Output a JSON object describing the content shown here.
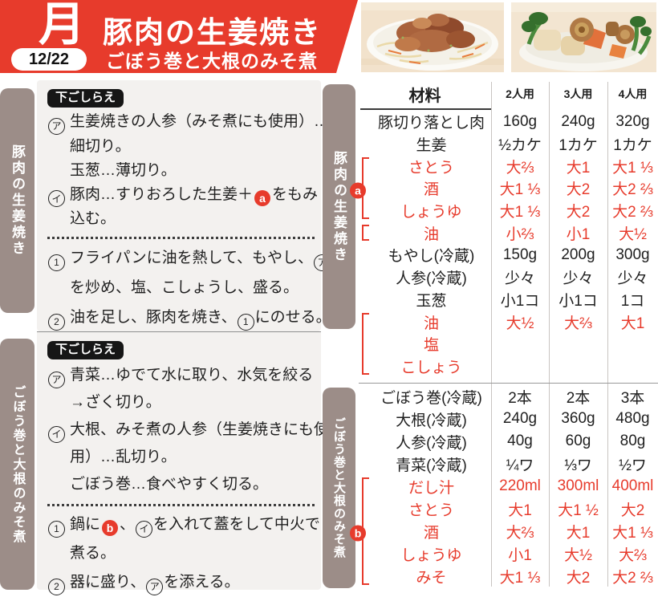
{
  "colors": {
    "accent_red": "#e73b2c",
    "tab_taupe": "#9c8d88",
    "block_bg": "#f3f1ef",
    "badge_black": "#161616",
    "ink": "#1f1f1f"
  },
  "header": {
    "day": "月",
    "date": "12/22",
    "title": "豚肉の生姜焼き",
    "subtitle": "ごぼう巻と大根のみそ煮"
  },
  "photos": [
    {
      "alt": "豚肉の生姜焼き"
    },
    {
      "alt": "ごぼう巻と大根のみそ煮"
    }
  ],
  "left_blocks": [
    {
      "tab": "豚肉の生姜焼き",
      "prep_label": "下ごしらえ",
      "prep_lines": [
        {
          "tokens": [
            [
              "kana",
              "ア"
            ],
            [
              "text",
              "生姜焼きの人参（みそ煮にも使用）…"
            ]
          ]
        },
        {
          "indent": true,
          "tokens": [
            [
              "text",
              "細切り。"
            ]
          ]
        },
        {
          "indent": true,
          "tokens": [
            [
              "text",
              "玉葱…薄切り。"
            ]
          ]
        },
        {
          "tokens": [
            [
              "kana",
              "イ"
            ],
            [
              "text",
              "豚肉…すりおろした生姜＋"
            ],
            [
              "badge",
              "a"
            ],
            [
              "text",
              "をもみ"
            ]
          ]
        },
        {
          "indent": true,
          "tokens": [
            [
              "text",
              "込む。"
            ]
          ]
        }
      ],
      "step_lines": [
        {
          "tokens": [
            [
              "num",
              "1"
            ],
            [
              "text",
              "フライパンに油を熱して、もやし、"
            ],
            [
              "kana",
              "ア"
            ]
          ]
        },
        {
          "indent": true,
          "tokens": [
            [
              "text",
              "を炒め、塩、こしょうし、盛る。"
            ]
          ]
        },
        {
          "tokens": [
            [
              "num",
              "2"
            ],
            [
              "text",
              "油を足し、豚肉を焼き、"
            ],
            [
              "num",
              "1"
            ],
            [
              "text",
              "にのせる。"
            ]
          ]
        }
      ]
    },
    {
      "tab": "ごぼう巻と大根のみそ煮",
      "prep_label": "下ごしらえ",
      "prep_lines": [
        {
          "tokens": [
            [
              "kana",
              "ア"
            ],
            [
              "text",
              "青菜…ゆでて水に取り、水気を絞る"
            ]
          ]
        },
        {
          "indent": true,
          "tokens": [
            [
              "text",
              "→ざく切り。"
            ]
          ]
        },
        {
          "tokens": [
            [
              "kana",
              "イ"
            ],
            [
              "text",
              "大根、みそ煮の人参（生姜焼きにも使"
            ]
          ]
        },
        {
          "indent": true,
          "tokens": [
            [
              "text",
              "用）…乱切り。"
            ]
          ]
        },
        {
          "indent": true,
          "tokens": [
            [
              "text",
              "ごぼう巻…食べやすく切る。"
            ]
          ]
        }
      ],
      "step_lines": [
        {
          "tokens": [
            [
              "num",
              "1"
            ],
            [
              "text",
              "鍋に"
            ],
            [
              "badge",
              "b"
            ],
            [
              "text",
              "、"
            ],
            [
              "kana",
              "イ"
            ],
            [
              "text",
              "を入れて蓋をして中火で"
            ]
          ]
        },
        {
          "indent": true,
          "tokens": [
            [
              "text",
              "煮る。"
            ]
          ]
        },
        {
          "tokens": [
            [
              "num",
              "2"
            ],
            [
              "text",
              "器に盛り、"
            ],
            [
              "kana",
              "ア"
            ],
            [
              "text",
              "を添える。"
            ]
          ]
        }
      ]
    }
  ],
  "table": {
    "headers": [
      "材料",
      "2人用",
      "3人用",
      "4人用"
    ],
    "sections": [
      {
        "tab": "豚肉の生姜焼き",
        "rows": [
          {
            "name": "豚切り落とし肉",
            "values": [
              "160g",
              "240g",
              "320g"
            ]
          },
          {
            "name": "生姜",
            "values": [
              "½カケ",
              "1カケ",
              "1カケ"
            ]
          },
          {
            "name": "さとう",
            "values": [
              "大⅔",
              "大1",
              "大1 ⅓"
            ],
            "red": true,
            "bracket": "start"
          },
          {
            "name": "酒",
            "values": [
              "大1 ⅓",
              "大2",
              "大2 ⅔"
            ],
            "red": true,
            "bracket": "mid",
            "badge": "a"
          },
          {
            "name": "しょうゆ",
            "values": [
              "大1 ⅓",
              "大2",
              "大2 ⅔"
            ],
            "red": true,
            "bracket": "end"
          },
          {
            "name": "油",
            "values": [
              "小⅔",
              "小1",
              "大½"
            ],
            "red": true,
            "bracket": "single"
          },
          {
            "name": "もやし(冷蔵)",
            "values": [
              "150g",
              "200g",
              "300g"
            ]
          },
          {
            "name": "人参(冷蔵)",
            "values": [
              "少々",
              "少々",
              "少々"
            ]
          },
          {
            "name": "玉葱",
            "values": [
              "小1コ",
              "小1コ",
              "1コ"
            ]
          },
          {
            "name": "油",
            "values": [
              "大½",
              "大⅔",
              "大1"
            ],
            "red": true,
            "bracket": "start"
          },
          {
            "name": "塩",
            "values": [
              "",
              "",
              ""
            ],
            "red": true,
            "bracket": "mid"
          },
          {
            "name": "こしょう",
            "values": [
              "",
              "",
              ""
            ],
            "red": true,
            "bracket": "end"
          }
        ]
      },
      {
        "tab": "ごぼう巻と大根のみそ煮",
        "rows": [
          {
            "name": "ごぼう巻(冷蔵)",
            "values": [
              "2本",
              "2本",
              "3本"
            ]
          },
          {
            "name": "大根(冷蔵)",
            "values": [
              "240g",
              "360g",
              "480g"
            ]
          },
          {
            "name": "人参(冷蔵)",
            "values": [
              "40g",
              "60g",
              "80g"
            ]
          },
          {
            "name": "青菜(冷蔵)",
            "values": [
              "¼ワ",
              "⅓ワ",
              "½ワ"
            ]
          },
          {
            "name": "だし汁",
            "values": [
              "220ml",
              "300ml",
              "400ml"
            ],
            "red": true,
            "bracket": "start"
          },
          {
            "name": "さとう",
            "values": [
              "大1",
              "大1 ½",
              "大2"
            ],
            "red": true,
            "bracket": "mid"
          },
          {
            "name": "酒",
            "values": [
              "大⅔",
              "大1",
              "大1 ⅓"
            ],
            "red": true,
            "bracket": "mid",
            "badge": "b"
          },
          {
            "name": "しょうゆ",
            "values": [
              "小1",
              "大½",
              "大⅔"
            ],
            "red": true,
            "bracket": "mid"
          },
          {
            "name": "みそ",
            "values": [
              "大1 ⅓",
              "大2",
              "大2 ⅔"
            ],
            "red": true,
            "bracket": "end"
          }
        ]
      }
    ]
  }
}
